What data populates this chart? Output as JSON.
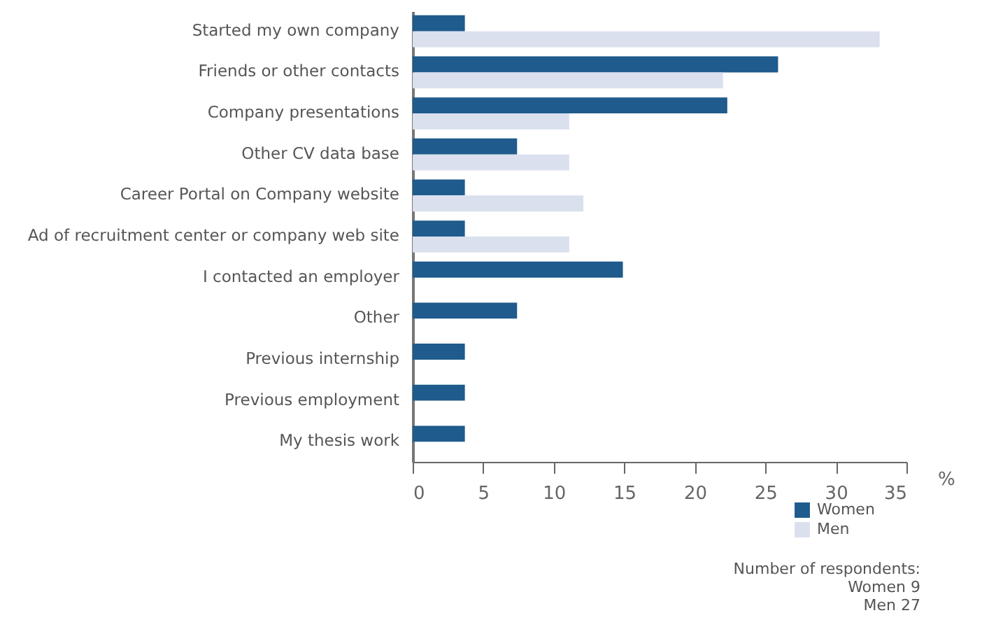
{
  "chart_data": {
    "type": "bar",
    "orientation": "horizontal",
    "categories": [
      "Started my own company",
      "Friends or other contacts",
      "Company presentations",
      "Other CV data base",
      "Career Portal on Company website",
      "Ad of recruitment center or company web site",
      "I contacted an employer",
      "Other",
      "Previous internship",
      "Previous employment",
      "My thesis work"
    ],
    "series": [
      {
        "name": "Women",
        "color": "#1f5b8c",
        "values": [
          3.7,
          25.9,
          22.3,
          7.4,
          3.7,
          3.7,
          14.9,
          7.4,
          3.7,
          3.7,
          3.7
        ]
      },
      {
        "name": "Men",
        "color": "#dae0ee",
        "values": [
          33.1,
          22.0,
          11.1,
          11.1,
          12.1,
          11.1,
          null,
          null,
          null,
          null,
          null
        ]
      }
    ],
    "xlim": [
      0,
      35
    ],
    "xticks": [
      0,
      5,
      10,
      15,
      20,
      25,
      30,
      35
    ],
    "xlabel": "%",
    "grid": false,
    "legend": "bottom right",
    "annotations": [
      "Number of respondents:\nWomen 9\nMen 27"
    ]
  }
}
